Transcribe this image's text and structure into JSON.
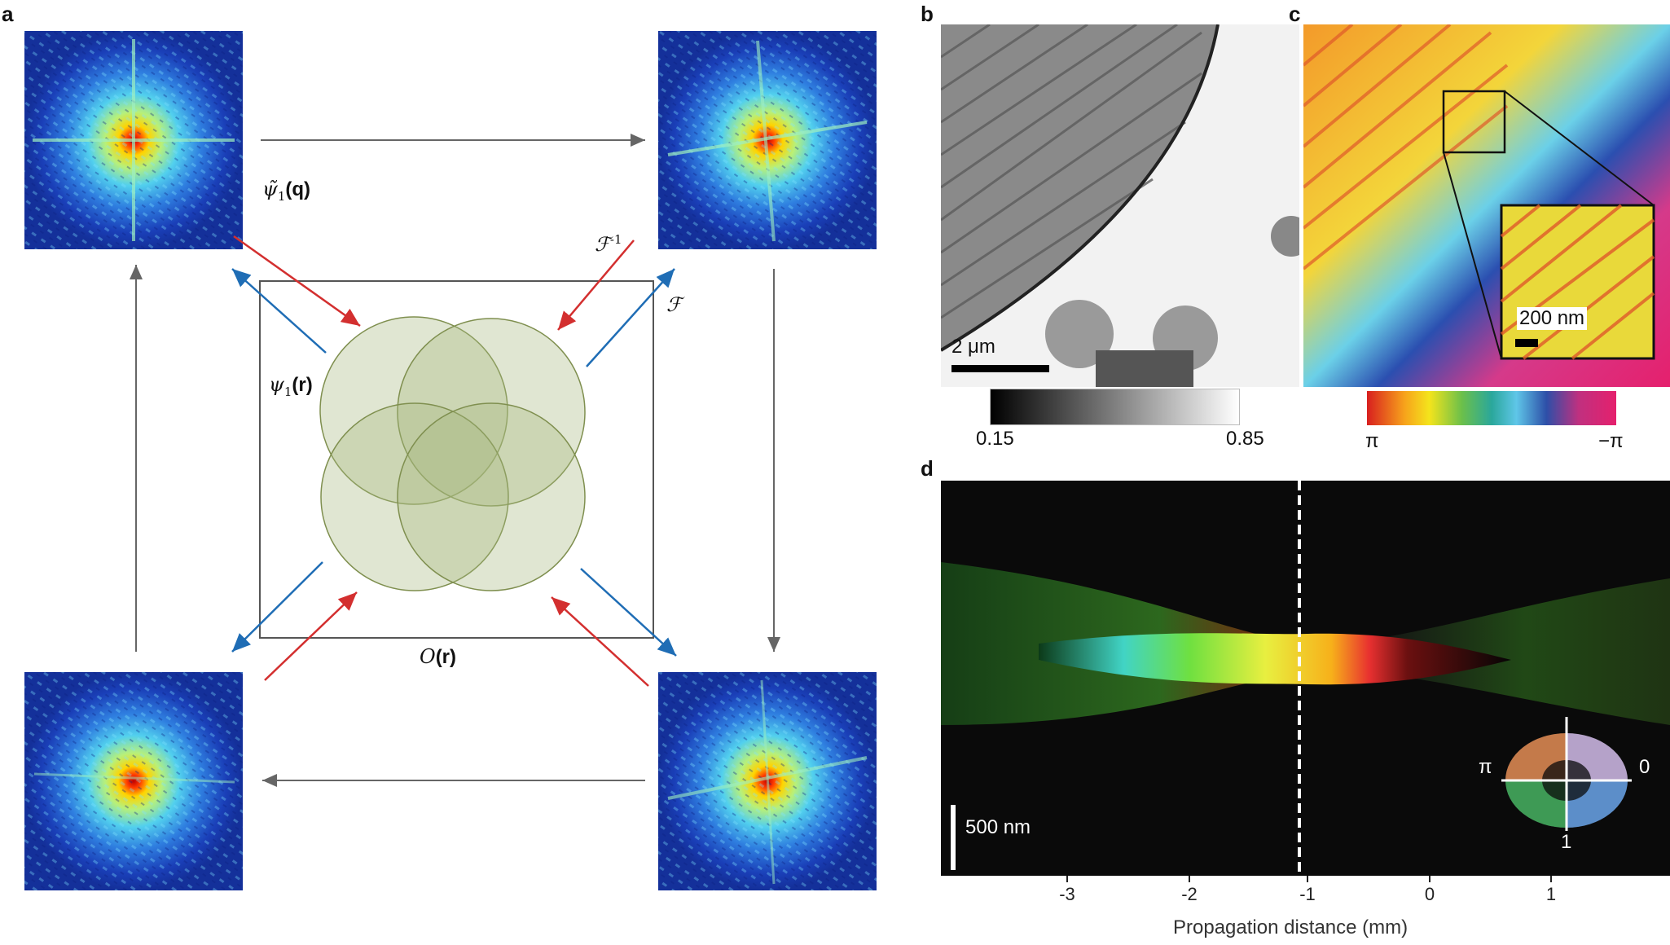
{
  "panels": {
    "a": "a",
    "b": "b",
    "c": "c",
    "d": "d"
  },
  "panel_a": {
    "psi_q": {
      "sym": "ψ̃",
      "sub": "1",
      "arg": "(q)"
    },
    "psi_r": {
      "sym": "ψ",
      "sub": "1",
      "arg": "(r)"
    },
    "F_inv": {
      "sym": "ℱ",
      "sup": "-1"
    },
    "F": "ℱ",
    "object": {
      "sym": "O",
      "arg": "(r)"
    },
    "colors": {
      "forward": "#1f6db5",
      "inverse": "#d32f2f",
      "cycle": "#666666",
      "probe": "#c9d3b2"
    }
  },
  "panel_b": {
    "scalebar": "2 μm",
    "colorbar_min": "0.15",
    "colorbar_max": "0.85"
  },
  "panel_c": {
    "inset_scalebar": "200 nm",
    "colorbar_left": "π",
    "colorbar_right": "−π"
  },
  "panel_d": {
    "scalebar": "500 nm",
    "xlabel": "Propagation distance (mm)",
    "xticks": [
      "-3",
      "-2",
      "-1",
      "0",
      "1"
    ],
    "wheel": {
      "left": "π",
      "right": "0",
      "bottom": "1"
    }
  }
}
